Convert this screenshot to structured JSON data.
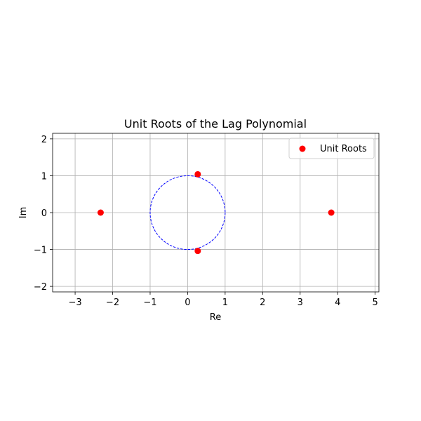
{
  "chart_data": {
    "type": "scatter",
    "title": "Unit Roots of the Lag Polynomial",
    "xlabel": "Re",
    "ylabel": "Im",
    "xlim": [
      -3.6,
      5.1
    ],
    "ylim": [
      -2.15,
      2.15
    ],
    "xticks": [
      -3,
      -2,
      -1,
      0,
      1,
      2,
      3,
      4,
      5
    ],
    "yticks": [
      -2,
      -1,
      0,
      1,
      2
    ],
    "xtick_labels": [
      "−3",
      "−2",
      "−1",
      "0",
      "1",
      "2",
      "3",
      "4",
      "5"
    ],
    "ytick_labels": [
      "−2",
      "−1",
      "0",
      "1",
      "2"
    ],
    "grid": true,
    "legend_position": "top-right",
    "series": [
      {
        "name": "Unit Roots",
        "color": "#ff0000",
        "points": [
          {
            "x": -2.32,
            "y": 0.0
          },
          {
            "x": 0.27,
            "y": 1.04
          },
          {
            "x": 0.27,
            "y": -1.04
          },
          {
            "x": 3.83,
            "y": 0.0
          }
        ]
      }
    ],
    "reference_circle": {
      "center": [
        0,
        0
      ],
      "radius": 1,
      "color": "#0000ff",
      "style": "dashed"
    }
  }
}
